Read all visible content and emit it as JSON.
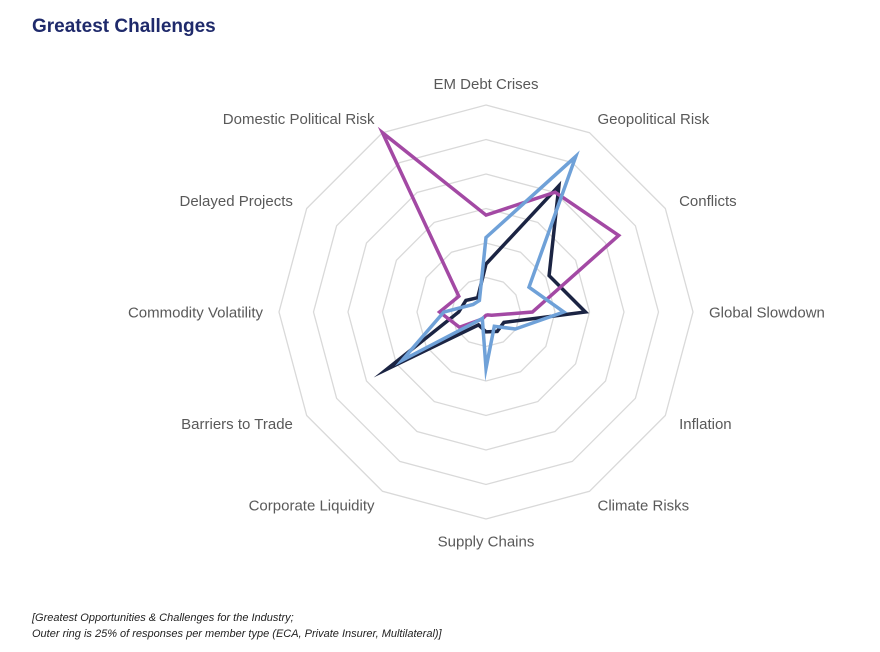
{
  "title": "Greatest Challenges",
  "footnote": {
    "line1": "[Greatest Opportunities & Challenges for the Industry;",
    "line2": "Outer ring is 25% of responses per member type (ECA, Private Insurer, Multilateral)]"
  },
  "chart_data": {
    "type": "radar",
    "categories": [
      "EM Debt Crises",
      "Geopolitical Risk",
      "Conflicts",
      "Global Slowdown",
      "Inflation",
      "Climate Risks",
      "Supply Chains",
      "Corporate Liquidity",
      "Barriers to Trade",
      "Commodity Volatility",
      "Delayed Projects",
      "Domestic Political Risk"
    ],
    "rings": 6,
    "range": [
      0,
      25
    ],
    "series": [
      {
        "color": "#1b2443",
        "values": [
          5.8,
          17.6,
          8.8,
          12.0,
          2.5,
          2.7,
          2.4,
          1.8,
          13.8,
          3.3,
          2.8,
          2.0
        ]
      },
      {
        "color": "#a349a4",
        "values": [
          11.7,
          16.7,
          18.5,
          5.6,
          0.8,
          0.4,
          0.4,
          1.0,
          3.7,
          5.6,
          3.8,
          25.0
        ]
      },
      {
        "color": "#6fa1d8",
        "values": [
          9.0,
          21.7,
          6.0,
          9.4,
          4.1,
          2.0,
          6.8,
          0.9,
          11.7,
          5.1,
          1.8,
          1.6
        ]
      }
    ],
    "grid_color": "#d9d9d9",
    "legend": "none"
  }
}
